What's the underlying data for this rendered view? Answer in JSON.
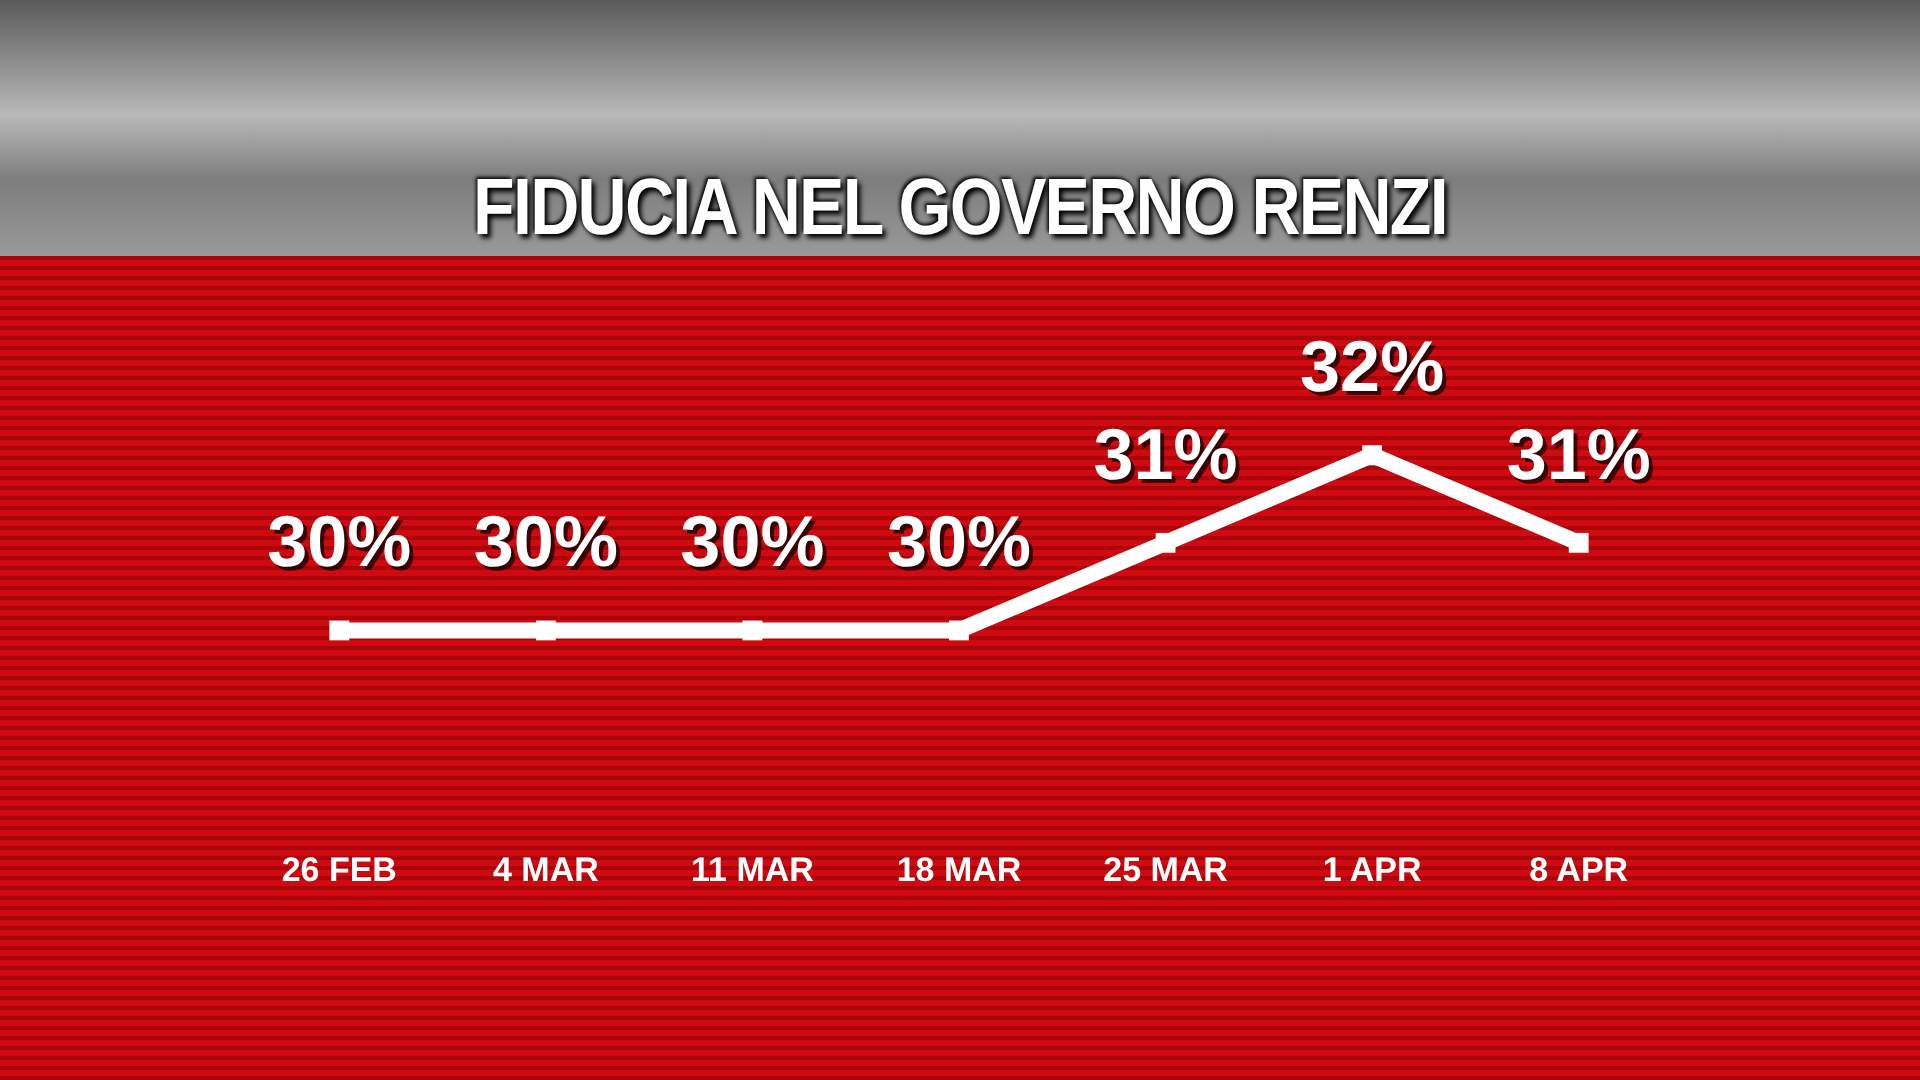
{
  "chart_data": {
    "type": "line",
    "title": "FIDUCIA NEL GOVERNO RENZI",
    "categories": [
      "26 FEB",
      "4 MAR",
      "11 MAR",
      "18 MAR",
      "25 MAR",
      "1 APR",
      "8 APR"
    ],
    "series": [
      {
        "color": "#ffffff",
        "values": [
          30,
          30,
          30,
          30,
          31,
          32,
          31
        ],
        "value_labels": [
          "30%",
          "30%",
          "30%",
          "30%",
          "31%",
          "32%",
          "31%"
        ]
      }
    ],
    "marker": "square",
    "line_style": "solid",
    "grid": false,
    "legend": false
  }
}
